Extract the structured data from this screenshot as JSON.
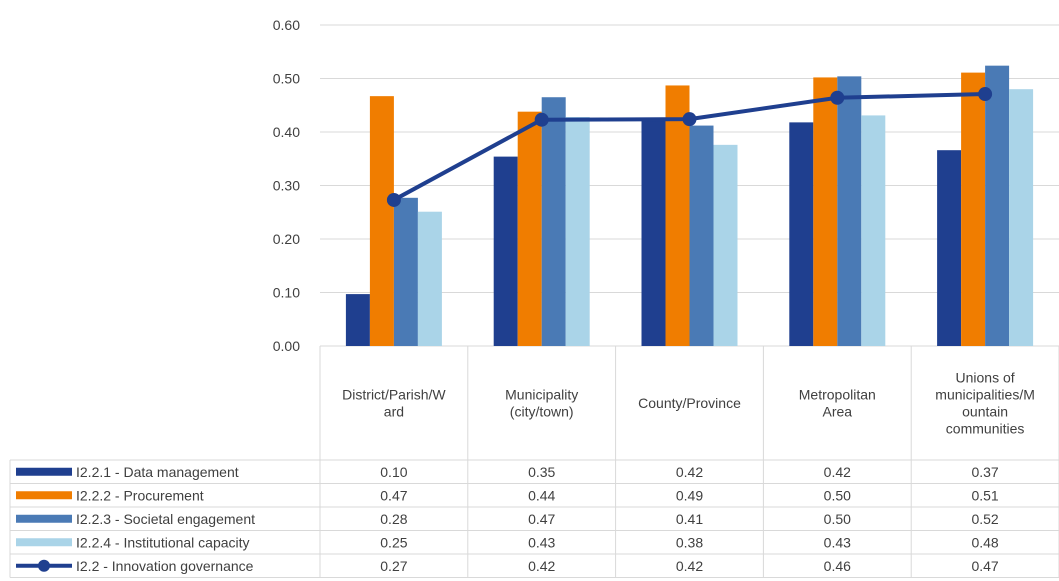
{
  "chart_data": {
    "type": "bar",
    "categories": [
      "District/Parish/Ward",
      "Municipality (city/town)",
      "County/Province",
      "Metropolitan Area",
      "Unions of municipalities/Mountain communities"
    ],
    "category_label_lines": [
      [
        "District/Parish/W",
        "ard"
      ],
      [
        "Municipality",
        "(city/town)"
      ],
      [
        "County/Province"
      ],
      [
        "Metropolitan",
        "Area"
      ],
      [
        "Unions of",
        "municipalities/M",
        "ountain",
        "communities"
      ]
    ],
    "y_ticks": [
      "0.00",
      "0.10",
      "0.20",
      "0.30",
      "0.40",
      "0.50",
      "0.60"
    ],
    "ylim": [
      0,
      0.6
    ],
    "grid": true,
    "legend_position": "data table",
    "series": [
      {
        "name": "I2.2.1 - Data management",
        "type": "bar",
        "color": "#1f3f8f",
        "values": [
          0.097,
          0.354,
          0.425,
          0.418,
          0.366
        ],
        "labels": [
          "0.10",
          "0.35",
          "0.42",
          "0.42",
          "0.37"
        ]
      },
      {
        "name": "I2.2.2 - Procurement",
        "type": "bar",
        "color": "#f07d00",
        "values": [
          0.467,
          0.438,
          0.487,
          0.502,
          0.511
        ],
        "labels": [
          "0.47",
          "0.44",
          "0.49",
          "0.50",
          "0.51"
        ]
      },
      {
        "name": "I2.2.3 - Societal engagement",
        "type": "bar",
        "color": "#4a7ab5",
        "values": [
          0.277,
          0.465,
          0.412,
          0.504,
          0.524
        ],
        "labels": [
          "0.28",
          "0.47",
          "0.41",
          "0.50",
          "0.52"
        ]
      },
      {
        "name": "I2.2.4 - Institutional capacity",
        "type": "bar",
        "color": "#aad4e8",
        "values": [
          0.251,
          0.428,
          0.376,
          0.431,
          0.48
        ],
        "labels": [
          "0.25",
          "0.43",
          "0.38",
          "0.43",
          "0.48"
        ]
      },
      {
        "name": "I2.2 - Innovation governance",
        "type": "line",
        "color": "#1f3f8f",
        "values": [
          0.273,
          0.423,
          0.424,
          0.464,
          0.471
        ],
        "labels": [
          "0.27",
          "0.42",
          "0.42",
          "0.46",
          "0.47"
        ]
      }
    ]
  }
}
